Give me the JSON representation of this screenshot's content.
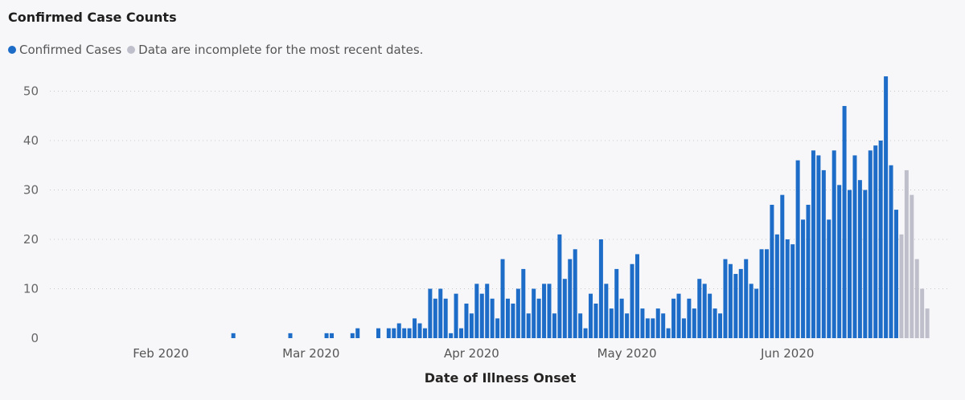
{
  "chart_data": {
    "type": "bar",
    "title": "Confirmed Case Counts",
    "xlabel": "Date of Illness Onset",
    "ylabel": "",
    "ylim": [
      0,
      55
    ],
    "yticks": [
      0,
      10,
      20,
      30,
      40,
      50
    ],
    "xticks": [
      {
        "label": "Feb 2020",
        "date": "2020-02-01"
      },
      {
        "label": "Mar 2020",
        "date": "2020-03-01"
      },
      {
        "label": "Apr 2020",
        "date": "2020-04-01"
      },
      {
        "label": "May 2020",
        "date": "2020-05-01"
      },
      {
        "label": "Jun 2020",
        "date": "2020-06-01"
      }
    ],
    "grid": "horizontal-dotted",
    "legend_position": "top-left",
    "series": [
      {
        "name": "Confirmed Cases",
        "color": "#1d6cc7",
        "points": [
          [
            "2020-02-15",
            1
          ],
          [
            "2020-02-26",
            1
          ],
          [
            "2020-03-04",
            1
          ],
          [
            "2020-03-05",
            1
          ],
          [
            "2020-03-09",
            1
          ],
          [
            "2020-03-10",
            2
          ],
          [
            "2020-03-14",
            2
          ],
          [
            "2020-03-16",
            2
          ],
          [
            "2020-03-17",
            2
          ],
          [
            "2020-03-18",
            3
          ],
          [
            "2020-03-19",
            2
          ],
          [
            "2020-03-20",
            2
          ],
          [
            "2020-03-21",
            4
          ],
          [
            "2020-03-22",
            3
          ],
          [
            "2020-03-23",
            2
          ],
          [
            "2020-03-24",
            10
          ],
          [
            "2020-03-25",
            8
          ],
          [
            "2020-03-26",
            10
          ],
          [
            "2020-03-27",
            8
          ],
          [
            "2020-03-28",
            1
          ],
          [
            "2020-03-29",
            9
          ],
          [
            "2020-03-30",
            2
          ],
          [
            "2020-03-31",
            7
          ],
          [
            "2020-04-01",
            5
          ],
          [
            "2020-04-02",
            11
          ],
          [
            "2020-04-03",
            9
          ],
          [
            "2020-04-04",
            11
          ],
          [
            "2020-04-05",
            8
          ],
          [
            "2020-04-06",
            4
          ],
          [
            "2020-04-07",
            16
          ],
          [
            "2020-04-08",
            8
          ],
          [
            "2020-04-09",
            7
          ],
          [
            "2020-04-10",
            10
          ],
          [
            "2020-04-11",
            14
          ],
          [
            "2020-04-12",
            5
          ],
          [
            "2020-04-13",
            10
          ],
          [
            "2020-04-14",
            8
          ],
          [
            "2020-04-15",
            11
          ],
          [
            "2020-04-16",
            11
          ],
          [
            "2020-04-17",
            5
          ],
          [
            "2020-04-18",
            21
          ],
          [
            "2020-04-19",
            12
          ],
          [
            "2020-04-20",
            16
          ],
          [
            "2020-04-21",
            18
          ],
          [
            "2020-04-22",
            5
          ],
          [
            "2020-04-23",
            2
          ],
          [
            "2020-04-24",
            9
          ],
          [
            "2020-04-25",
            7
          ],
          [
            "2020-04-26",
            20
          ],
          [
            "2020-04-27",
            11
          ],
          [
            "2020-04-28",
            6
          ],
          [
            "2020-04-29",
            14
          ],
          [
            "2020-04-30",
            8
          ],
          [
            "2020-05-01",
            5
          ],
          [
            "2020-05-02",
            15
          ],
          [
            "2020-05-03",
            17
          ],
          [
            "2020-05-04",
            6
          ],
          [
            "2020-05-05",
            4
          ],
          [
            "2020-05-06",
            4
          ],
          [
            "2020-05-07",
            6
          ],
          [
            "2020-05-08",
            5
          ],
          [
            "2020-05-09",
            2
          ],
          [
            "2020-05-10",
            8
          ],
          [
            "2020-05-11",
            9
          ],
          [
            "2020-05-12",
            4
          ],
          [
            "2020-05-13",
            8
          ],
          [
            "2020-05-14",
            6
          ],
          [
            "2020-05-15",
            12
          ],
          [
            "2020-05-16",
            11
          ],
          [
            "2020-05-17",
            9
          ],
          [
            "2020-05-18",
            6
          ],
          [
            "2020-05-19",
            5
          ],
          [
            "2020-05-20",
            16
          ],
          [
            "2020-05-21",
            15
          ],
          [
            "2020-05-22",
            13
          ],
          [
            "2020-05-23",
            14
          ],
          [
            "2020-05-24",
            16
          ],
          [
            "2020-05-25",
            11
          ],
          [
            "2020-05-26",
            10
          ],
          [
            "2020-05-27",
            18
          ],
          [
            "2020-05-28",
            18
          ],
          [
            "2020-05-29",
            27
          ],
          [
            "2020-05-30",
            21
          ],
          [
            "2020-05-31",
            29
          ],
          [
            "2020-06-01",
            20
          ],
          [
            "2020-06-02",
            19
          ],
          [
            "2020-06-03",
            36
          ],
          [
            "2020-06-04",
            24
          ],
          [
            "2020-06-05",
            27
          ],
          [
            "2020-06-06",
            38
          ],
          [
            "2020-06-07",
            37
          ],
          [
            "2020-06-08",
            34
          ],
          [
            "2020-06-09",
            24
          ],
          [
            "2020-06-10",
            38
          ],
          [
            "2020-06-11",
            31
          ],
          [
            "2020-06-12",
            47
          ],
          [
            "2020-06-13",
            30
          ],
          [
            "2020-06-14",
            37
          ],
          [
            "2020-06-15",
            32
          ],
          [
            "2020-06-16",
            30
          ],
          [
            "2020-06-17",
            38
          ],
          [
            "2020-06-18",
            39
          ],
          [
            "2020-06-19",
            40
          ],
          [
            "2020-06-20",
            53
          ],
          [
            "2020-06-21",
            35
          ],
          [
            "2020-06-22",
            26
          ]
        ]
      },
      {
        "name": "Data are incomplete for the most recent dates.",
        "color": "#bebfca",
        "points": [
          [
            "2020-06-23",
            21
          ],
          [
            "2020-06-24",
            34
          ],
          [
            "2020-06-25",
            29
          ],
          [
            "2020-06-26",
            16
          ],
          [
            "2020-06-27",
            10
          ],
          [
            "2020-06-28",
            6
          ]
        ]
      }
    ]
  }
}
